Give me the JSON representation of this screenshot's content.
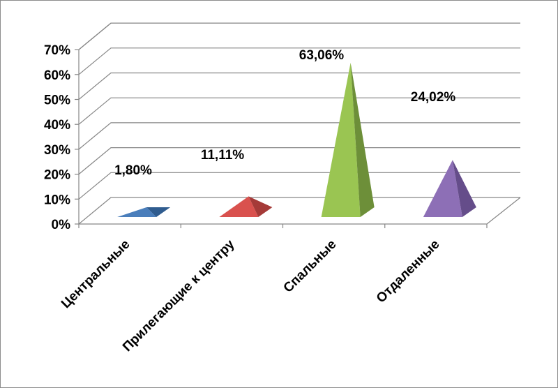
{
  "chart_data": {
    "type": "bar",
    "shape": "pyramid-3d",
    "categories": [
      "Центральные",
      "Прилегающие к центру",
      "Спальные",
      "Отдаленные"
    ],
    "values": [
      1.8,
      11.11,
      63.06,
      24.02
    ],
    "data_labels": [
      "1,80%",
      "11,11%",
      "63,06%",
      "24,02%"
    ],
    "colors": [
      "#4a7ebb",
      "#d9514e",
      "#9ac552",
      "#8d6fb6"
    ],
    "shade_colors": [
      "#2f5c8f",
      "#a53a38",
      "#6d8f39",
      "#654d8a"
    ],
    "y_ticks": [
      "0%",
      "10%",
      "20%",
      "30%",
      "40%",
      "50%",
      "60%",
      "70%"
    ],
    "ylim": [
      0,
      70
    ],
    "grid": true,
    "legend": "none"
  }
}
